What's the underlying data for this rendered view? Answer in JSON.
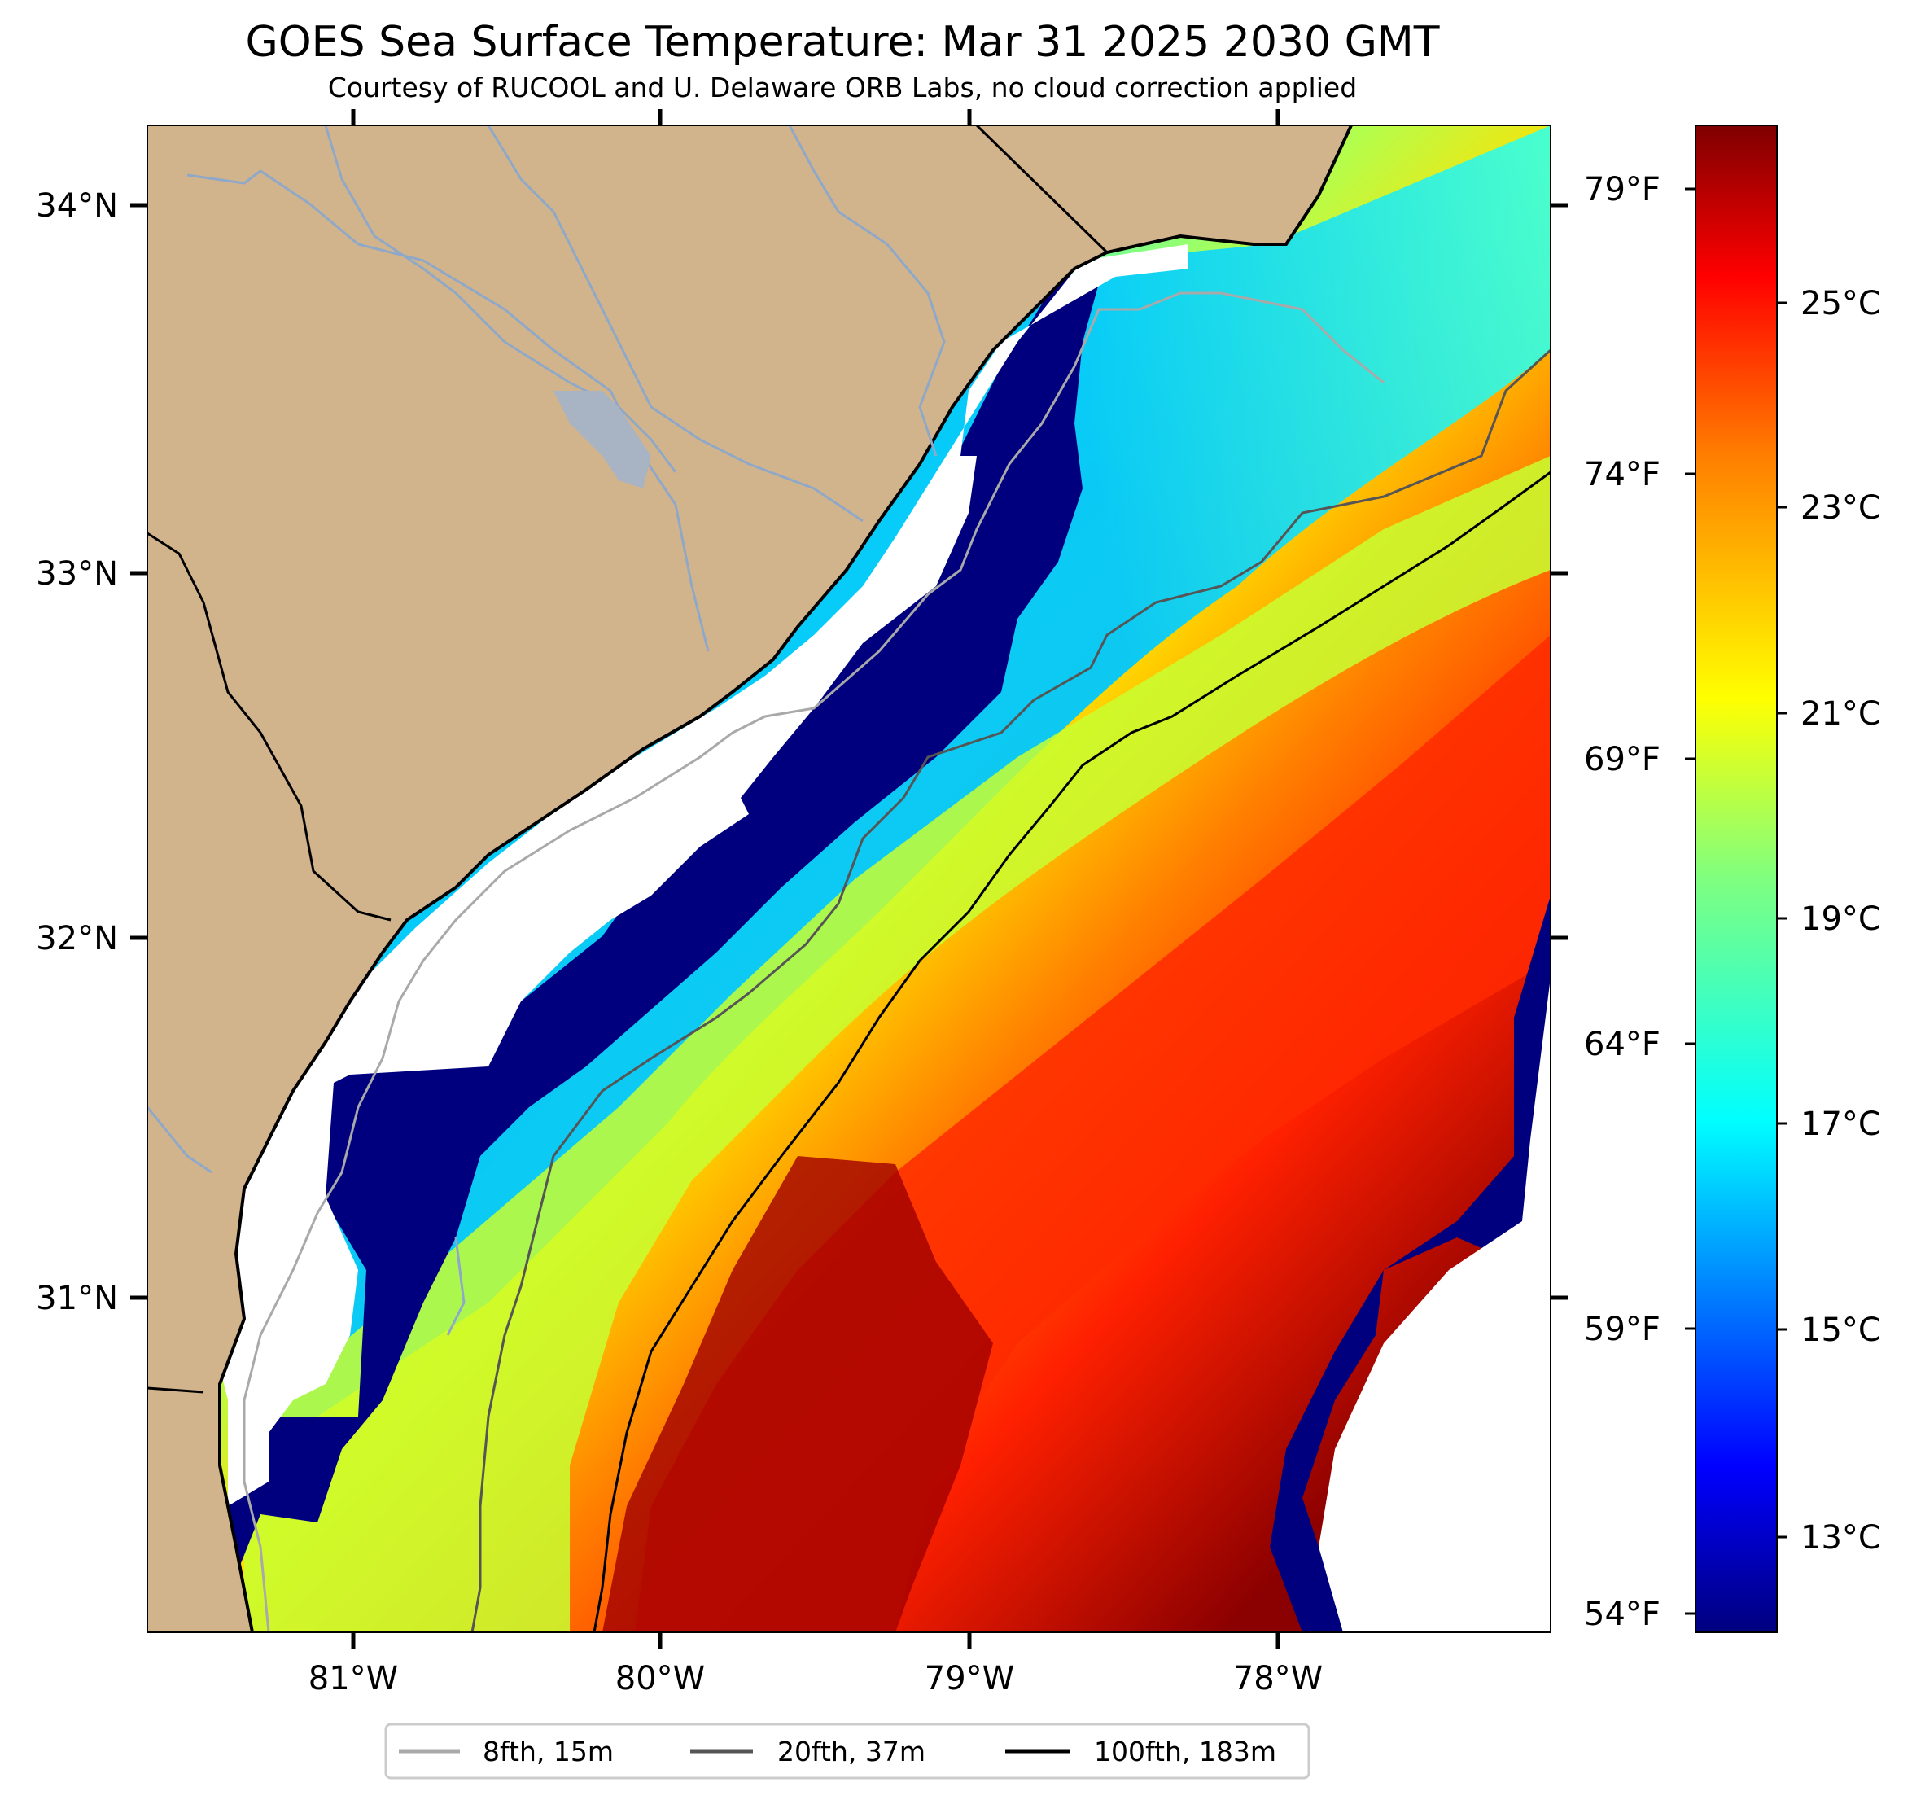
{
  "title": "GOES Sea Surface Temperature: Mar 31 2025 2030 GMT",
  "subtitle": "Courtesy of RUCOOL and U. Delaware ORB Labs, no cloud correction applied",
  "map": {
    "lon_range": [
      -81.67,
      -77.1
    ],
    "lat_range": [
      30.1,
      34.22
    ],
    "lat_labels": [
      "34°N",
      "33°N",
      "32°N",
      "31°N"
    ],
    "lon_labels": [
      "81°W",
      "80°W",
      "79°W",
      "78°W"
    ],
    "colors": {
      "land": "#D2B48C",
      "rivers": "#8fa8c8",
      "no_data": "#ffffff"
    }
  },
  "fahrenheit_labels": [
    "79°F",
    "74°F",
    "69°F",
    "64°F",
    "59°F",
    "54°F"
  ],
  "colorbar": {
    "labels": [
      "25°C",
      "23°C",
      "21°C",
      "19°C",
      "17°C",
      "15°C",
      "13°C"
    ],
    "colormap": "jet"
  },
  "legend": [
    {
      "label": "8fth, 15m",
      "color": "#a9a9a9"
    },
    {
      "label": "20fth, 37m",
      "color": "#555555"
    },
    {
      "label": "100fth, 183m",
      "color": "#000000"
    }
  ]
}
